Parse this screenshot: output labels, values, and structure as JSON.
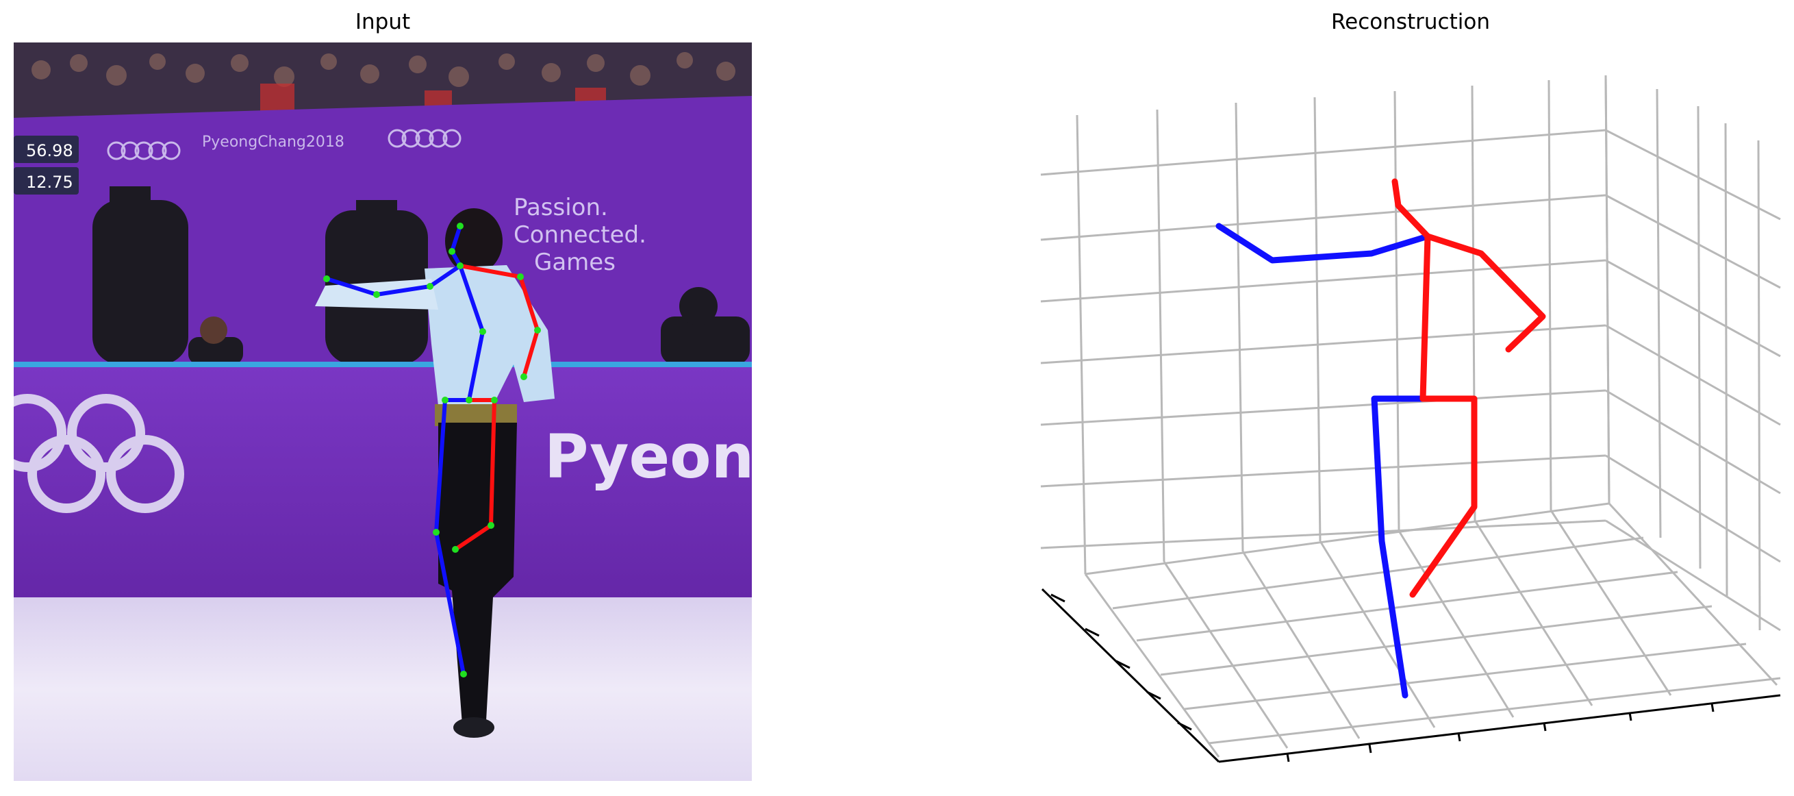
{
  "titles": {
    "input": "Input",
    "reconstruction": "Reconstruction"
  },
  "scoreboard": {
    "score": "56.98",
    "sub_score": "12.75"
  },
  "venue_text": {
    "banner_small": "PyeongChang2018",
    "rink_board": "PyeongC",
    "slogan_lines": [
      "Passion.",
      "Connected.",
      "Games"
    ]
  },
  "colors": {
    "left_limb": "#1010ff",
    "right_limb": "#ff1010",
    "joint": "#20e020",
    "grid": "#b8b8b8",
    "axis": "#000000",
    "backdrop": "#6a2bb0",
    "ice": "#ece6f6"
  }
}
